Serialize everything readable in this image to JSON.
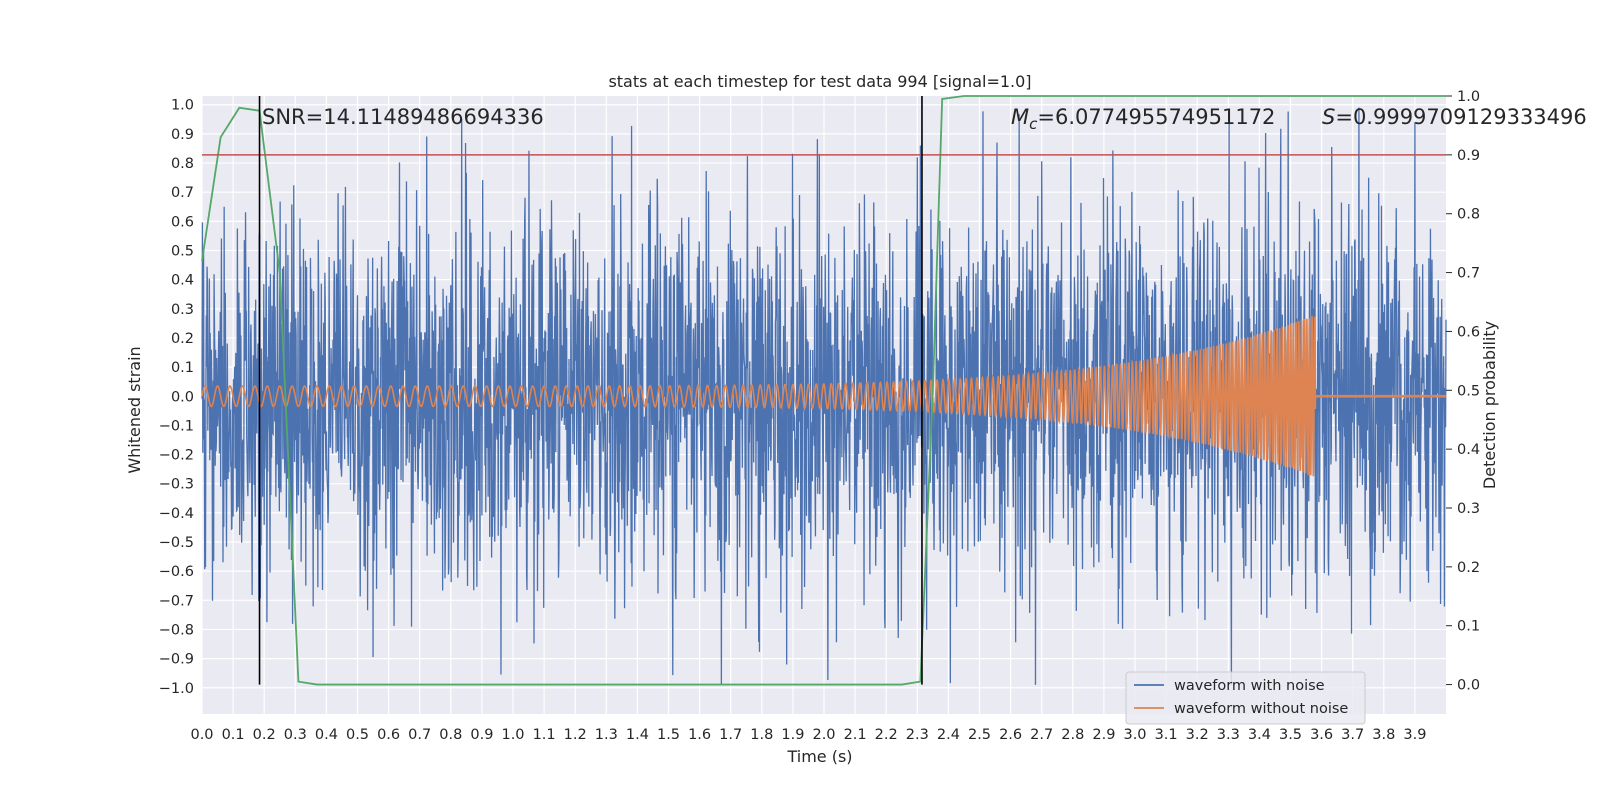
{
  "chart_data": {
    "type": "line",
    "title": "stats at each timestep for test data 994 [signal=1.0]",
    "xlabel": "Time (s)",
    "ylabel": "Whitened strain",
    "y2label": "Detection probability",
    "xlim": [
      0.0,
      4.0
    ],
    "ylim": [
      -1.09,
      1.03
    ],
    "y2lim": [
      -0.05,
      1.0
    ],
    "grid": true,
    "x_ticks": [
      "0.0",
      "0.1",
      "0.2",
      "0.3",
      "0.4",
      "0.5",
      "0.6",
      "0.7",
      "0.8",
      "0.9",
      "1.0",
      "1.1",
      "1.2",
      "1.3",
      "1.4",
      "1.5",
      "1.6",
      "1.7",
      "1.8",
      "1.9",
      "2.0",
      "2.1",
      "2.2",
      "2.3",
      "2.4",
      "2.5",
      "2.6",
      "2.7",
      "2.8",
      "2.9",
      "3.0",
      "3.1",
      "3.2",
      "3.3",
      "3.4",
      "3.5",
      "3.6",
      "3.7",
      "3.8",
      "3.9"
    ],
    "y_ticks": [
      "1.0",
      "0.9",
      "0.8",
      "0.7",
      "0.6",
      "0.5",
      "0.4",
      "0.3",
      "0.2",
      "0.1",
      "0.0",
      "−0.1",
      "−0.2",
      "−0.3",
      "−0.4",
      "−0.5",
      "−0.6",
      "−0.7",
      "−0.8",
      "−0.9",
      "−1.0"
    ],
    "y2_ticks": [
      "1.0",
      "0.9",
      "0.8",
      "0.7",
      "0.6",
      "0.5",
      "0.4",
      "0.3",
      "0.2",
      "0.1",
      "0.0"
    ],
    "threshold_y2": 0.9,
    "markers_x": [
      0.185,
      2.315
    ],
    "noise_amplitude": 0.32,
    "signal": {
      "amp_start": 0.035,
      "amp_end": 0.28,
      "f_start": 25,
      "f_end": 120,
      "merger_t": 3.58
    },
    "series": [
      {
        "name": "waveform with noise",
        "color": "#4c72b0",
        "axis": "left"
      },
      {
        "name": "waveform without noise",
        "color": "#dd8452",
        "axis": "left"
      },
      {
        "name": "detection probability",
        "color": "#55a868",
        "axis": "right",
        "x": [
          0.0,
          0.06,
          0.12,
          0.185,
          0.25,
          0.31,
          0.37,
          0.45,
          0.6,
          1.0,
          1.5,
          2.0,
          2.25,
          2.31,
          2.35,
          2.38,
          2.45,
          2.6,
          3.0,
          3.5,
          4.0
        ],
        "y": [
          0.72,
          0.93,
          0.98,
          0.975,
          0.7,
          0.005,
          0.0,
          0.0,
          0.0,
          0.0,
          0.0,
          0.0,
          0.0,
          0.005,
          0.5,
          0.995,
          1.0,
          1.0,
          1.0,
          1.0,
          1.0
        ]
      }
    ],
    "threshold_color": "#c44e52",
    "legend": {
      "position": "lower-right",
      "entries": [
        "waveform with noise",
        "waveform without noise"
      ]
    },
    "annotations": {
      "snr": "SNR=14.11489486694336",
      "mc_symbol": "M",
      "mc_sub": "c",
      "mc_value": "=6.077495574951172",
      "s_symbol": "S",
      "s_value": "=0.9999709129333496"
    }
  }
}
